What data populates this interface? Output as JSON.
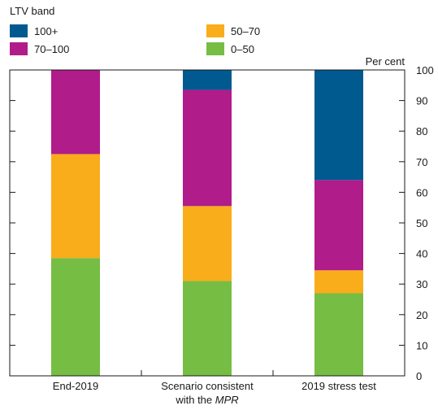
{
  "chart_data": {
    "type": "bar",
    "stacked": true,
    "legend_title": "LTV band",
    "legend_position": "top-left",
    "ylabel": "Per cent",
    "ylim": [
      0,
      100
    ],
    "yticks": [
      0,
      10,
      20,
      30,
      40,
      50,
      60,
      70,
      80,
      90,
      100
    ],
    "categories": [
      {
        "label": "End-2019",
        "label_line2": ""
      },
      {
        "label": "Scenario consistent",
        "label_line2_prefix": "with the ",
        "label_line2_italic": "MPR"
      },
      {
        "label": "2019 stress test",
        "label_line2": ""
      }
    ],
    "series": [
      {
        "name": "0–50",
        "color": "#76bd43",
        "values": [
          38.5,
          31,
          27
        ]
      },
      {
        "name": "50–70",
        "color": "#f9ad1b",
        "values": [
          34,
          24.5,
          7.5
        ]
      },
      {
        "name": "70–100",
        "color": "#b01c8a",
        "values": [
          27.5,
          38,
          29.5
        ]
      },
      {
        "name": "100+",
        "color": "#005a8f",
        "values": [
          0,
          6.5,
          36
        ]
      }
    ],
    "legend_order": [
      "100+",
      "50–70",
      "70–100",
      "0–50"
    ],
    "grid": false
  }
}
